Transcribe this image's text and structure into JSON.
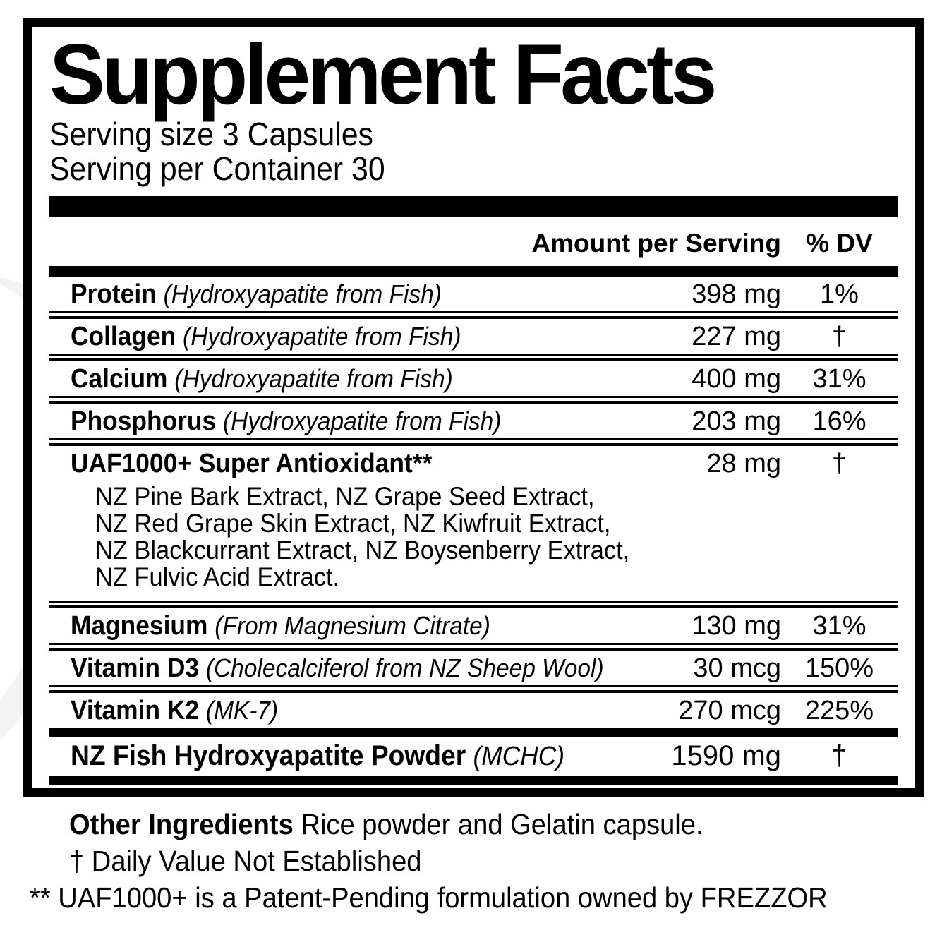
{
  "colors": {
    "text": "#000000",
    "panel_bg": "#ffffff",
    "rule": "#000000",
    "page_bg": "#ffffff"
  },
  "label": {
    "title": "Supplement Facts",
    "serving_size": "Serving size 3 Capsules",
    "servings_per_container": "Serving per Container 30",
    "columns": {
      "amount": "Amount per Serving",
      "dv": "% DV"
    },
    "rows": [
      {
        "name": "Protein",
        "note": "(Hydroxyapatite from Fish)",
        "amount": "398 mg",
        "dv": "1%"
      },
      {
        "name": "Collagen",
        "note": "(Hydroxyapatite from Fish)",
        "amount": "227 mg",
        "dv": "†"
      },
      {
        "name": "Calcium",
        "note": "(Hydroxyapatite from Fish)",
        "amount": "400 mg",
        "dv": "31%"
      },
      {
        "name": "Phosphorus",
        "note": "(Hydroxyapatite from Fish)",
        "amount": "203 mg",
        "dv": "16%"
      },
      {
        "name": "UAF1000+ Super Antioxidant**",
        "amount": "28 mg",
        "dv": "†",
        "sub": [
          "NZ Pine Bark Extract, NZ Grape Seed Extract,",
          "NZ Red Grape Skin Extract, NZ Kiwfruit Extract,",
          "NZ Blackcurrant Extract, NZ Boysenberry Extract,",
          "NZ Fulvic Acid Extract."
        ]
      },
      {
        "name": "Magnesium",
        "note": "(From Magnesium Citrate)",
        "amount": "130 mg",
        "dv": "31%"
      },
      {
        "name": "Vitamin D3",
        "note": "(Cholecalciferol from NZ Sheep Wool)",
        "amount": "30 mcg",
        "dv": "150%"
      },
      {
        "name": "Vitamin K2",
        "note": "(MK-7)",
        "amount": "270 mcg",
        "dv": "225%"
      }
    ],
    "highlight_row": {
      "name": "NZ Fish Hydroxyapatite Powder",
      "note": "(MCHC)",
      "amount": "1590 mg",
      "dv": "†"
    },
    "footnotes": {
      "other_ingredients_label": "Other Ingredients",
      "other_ingredients_text": "Rice powder and Gelatin capsule.",
      "daily_value": "† Daily Value Not Established",
      "uaf_note": "** UAF1000+ is a Patent-Pending formulation owned by FREZZOR"
    }
  }
}
